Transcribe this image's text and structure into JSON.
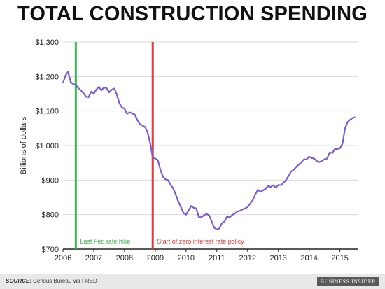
{
  "title": "TOTAL CONSTRUCTION SPENDING",
  "footer": {
    "source_label": "SOURCE:",
    "source_text": "Census Bureau via FRED",
    "brand": "BUSINESS INSIDER"
  },
  "chart_data": {
    "type": "line",
    "title": "TOTAL CONSTRUCTION SPENDING",
    "xlabel": "",
    "ylabel": "Billions of dollars",
    "xlim": [
      2006,
      2015.6
    ],
    "ylim": [
      700,
      1300
    ],
    "x_ticks": [
      2006,
      2007,
      2008,
      2009,
      2010,
      2011,
      2012,
      2013,
      2014,
      2015
    ],
    "y_ticks": [
      700,
      800,
      900,
      1000,
      1100,
      1200,
      1300
    ],
    "y_tick_labels": [
      "$700",
      "$800",
      "$900",
      "$1,000",
      "$1,100",
      "$1,200",
      "$1,300"
    ],
    "grid": "horizontal",
    "line_color": "#7d5bd6",
    "series": [
      {
        "x": [
          2006.0,
          2006.083,
          2006.167,
          2006.25,
          2006.333,
          2006.417,
          2006.5,
          2006.583,
          2006.667,
          2006.75,
          2006.833,
          2006.917,
          2007.0,
          2007.083,
          2007.167,
          2007.25,
          2007.333,
          2007.417,
          2007.5,
          2007.583,
          2007.667,
          2007.75,
          2007.833,
          2007.917,
          2008.0,
          2008.083,
          2008.167,
          2008.25,
          2008.333,
          2008.417,
          2008.5,
          2008.583,
          2008.667,
          2008.75,
          2008.833,
          2008.917,
          2009.0,
          2009.083,
          2009.167,
          2009.25,
          2009.333,
          2009.417,
          2009.5,
          2009.583,
          2009.667,
          2009.75,
          2009.833,
          2009.917,
          2010.0,
          2010.083,
          2010.167,
          2010.25,
          2010.333,
          2010.417,
          2010.5,
          2010.583,
          2010.667,
          2010.75,
          2010.833,
          2010.917,
          2011.0,
          2011.083,
          2011.167,
          2011.25,
          2011.333,
          2011.417,
          2011.5,
          2011.583,
          2011.667,
          2011.75,
          2011.833,
          2011.917,
          2012.0,
          2012.083,
          2012.167,
          2012.25,
          2012.333,
          2012.417,
          2012.5,
          2012.583,
          2012.667,
          2012.75,
          2012.833,
          2012.917,
          2013.0,
          2013.083,
          2013.167,
          2013.25,
          2013.333,
          2013.417,
          2013.5,
          2013.583,
          2013.667,
          2013.75,
          2013.833,
          2013.917,
          2014.0,
          2014.083,
          2014.167,
          2014.25,
          2014.333,
          2014.417,
          2014.5,
          2014.583,
          2014.667,
          2014.75,
          2014.833,
          2014.917,
          2015.0,
          2015.083,
          2015.167,
          2015.25,
          2015.333,
          2015.417,
          2015.5
        ],
        "values": [
          1181,
          1203,
          1214,
          1184,
          1178,
          1176,
          1166,
          1160,
          1152,
          1141,
          1140,
          1156,
          1150,
          1162,
          1170,
          1160,
          1168,
          1166,
          1154,
          1162,
          1165,
          1148,
          1123,
          1110,
          1107,
          1092,
          1096,
          1093,
          1090,
          1074,
          1062,
          1058,
          1054,
          1038,
          1007,
          966,
          962,
          958,
          930,
          910,
          902,
          900,
          886,
          876,
          858,
          838,
          822,
          805,
          800,
          812,
          825,
          820,
          818,
          792,
          793,
          798,
          802,
          798,
          780,
          762,
          757,
          760,
          775,
          780,
          795,
          792,
          799,
          803,
          809,
          811,
          815,
          818,
          822,
          832,
          842,
          858,
          872,
          866,
          870,
          875,
          883,
          880,
          885,
          878,
          886,
          885,
          892,
          900,
          912,
          925,
          930,
          938,
          945,
          952,
          960,
          960,
          968,
          964,
          962,
          955,
          952,
          956,
          960,
          962,
          980,
          978,
          990,
          990,
          992,
          1005,
          1050,
          1068,
          1075,
          1080,
          1082
        ]
      }
    ],
    "annotations": [
      {
        "label": "Last Fed rate hike",
        "x": 2006.417,
        "color": "#3cb554"
      },
      {
        "label": "Start of zero interest rate policy",
        "x": 2008.917,
        "color": "#e53935"
      }
    ]
  }
}
